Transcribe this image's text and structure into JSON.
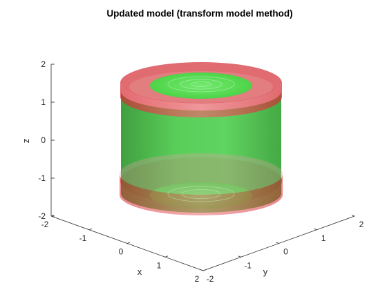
{
  "chart_data": {
    "type": "surface3d",
    "title": "Updated model (transform model method)",
    "xlabel": "x",
    "ylabel": "y",
    "zlabel": "z",
    "xlim": [
      -2,
      2
    ],
    "ylim": [
      -2,
      2
    ],
    "zlim": [
      -2,
      2
    ],
    "x_ticks": [
      "-2",
      "-1",
      "0",
      "1",
      "2"
    ],
    "y_ticks": [
      "-2",
      "-1",
      "0",
      "1",
      "2"
    ],
    "z_ticks": [
      "-2",
      "-1",
      "0",
      "1",
      "2"
    ],
    "grid": false,
    "shapes": [
      {
        "kind": "cylinder-side",
        "color": "#2fbf2f",
        "radius": 1.5,
        "z_range": [
          -1.5,
          1.5
        ],
        "opacity": 0.8
      },
      {
        "kind": "rounded-end-top",
        "color": "#e0303a",
        "radius": 1.7,
        "z_range": [
          1.2,
          2.0
        ],
        "opacity": 0.55
      },
      {
        "kind": "rounded-end-bottom",
        "color": "#e0303a",
        "radius": 1.7,
        "z_range": [
          -2.0,
          -1.2
        ],
        "opacity": 0.55
      },
      {
        "kind": "end-disc",
        "color": "#4be04b",
        "radius": 1.1,
        "z": 1.8
      },
      {
        "kind": "end-disc",
        "color": "#4be04b",
        "radius": 1.1,
        "z": -1.8
      }
    ]
  }
}
